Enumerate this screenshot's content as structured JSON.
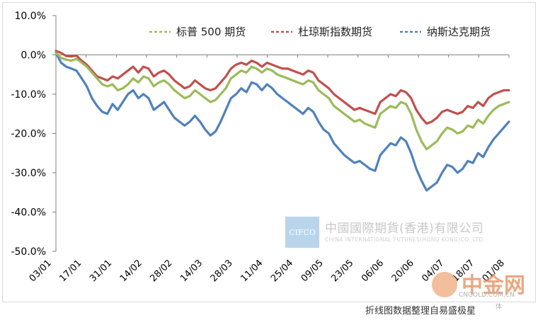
{
  "chart_data": {
    "type": "line",
    "title": "",
    "xlabel": "",
    "ylabel": "",
    "ylim": [
      -0.5,
      0.1
    ],
    "y_ticks": [
      "10.0%",
      "0.0%",
      "-10.0%",
      "-20.0%",
      "-30.0%",
      "-40.0%",
      "-50.0%"
    ],
    "x_ticks": [
      "03/01",
      "17/01",
      "31/01",
      "14/02",
      "28/02",
      "14/03",
      "28/03",
      "11/04",
      "25/04",
      "09/05",
      "23/05",
      "06/06",
      "20/06",
      "04/07",
      "18/07",
      "01/08"
    ],
    "grid": false,
    "legend_position": "top-right",
    "series": [
      {
        "name": "标普 500 期货",
        "color": "#9BBB59",
        "values": [
          0.005,
          -0.008,
          -0.012,
          -0.015,
          -0.01,
          -0.02,
          -0.03,
          -0.045,
          -0.06,
          -0.075,
          -0.08,
          -0.075,
          -0.09,
          -0.085,
          -0.075,
          -0.06,
          -0.07,
          -0.055,
          -0.06,
          -0.08,
          -0.07,
          -0.065,
          -0.075,
          -0.09,
          -0.1,
          -0.11,
          -0.105,
          -0.09,
          -0.1,
          -0.11,
          -0.12,
          -0.115,
          -0.1,
          -0.085,
          -0.06,
          -0.05,
          -0.04,
          -0.045,
          -0.03,
          -0.035,
          -0.045,
          -0.035,
          -0.04,
          -0.05,
          -0.055,
          -0.06,
          -0.065,
          -0.07,
          -0.075,
          -0.065,
          -0.07,
          -0.09,
          -0.1,
          -0.11,
          -0.13,
          -0.14,
          -0.15,
          -0.16,
          -0.17,
          -0.165,
          -0.175,
          -0.18,
          -0.185,
          -0.15,
          -0.14,
          -0.13,
          -0.135,
          -0.12,
          -0.125,
          -0.15,
          -0.19,
          -0.22,
          -0.24,
          -0.23,
          -0.22,
          -0.2,
          -0.185,
          -0.19,
          -0.2,
          -0.195,
          -0.18,
          -0.185,
          -0.165,
          -0.175,
          -0.155,
          -0.14,
          -0.13,
          -0.125,
          -0.12
        ]
      },
      {
        "name": "杜琼斯指数期货",
        "color": "#C0504D",
        "values": [
          0.01,
          0.005,
          -0.003,
          -0.004,
          -0.002,
          -0.015,
          -0.025,
          -0.04,
          -0.055,
          -0.06,
          -0.065,
          -0.055,
          -0.06,
          -0.05,
          -0.04,
          -0.03,
          -0.045,
          -0.03,
          -0.035,
          -0.055,
          -0.045,
          -0.04,
          -0.05,
          -0.065,
          -0.075,
          -0.085,
          -0.08,
          -0.065,
          -0.075,
          -0.085,
          -0.09,
          -0.085,
          -0.07,
          -0.055,
          -0.035,
          -0.025,
          -0.02,
          -0.025,
          -0.015,
          -0.02,
          -0.03,
          -0.02,
          -0.025,
          -0.03,
          -0.035,
          -0.035,
          -0.04,
          -0.045,
          -0.05,
          -0.04,
          -0.045,
          -0.065,
          -0.075,
          -0.085,
          -0.1,
          -0.11,
          -0.12,
          -0.13,
          -0.14,
          -0.135,
          -0.14,
          -0.145,
          -0.15,
          -0.12,
          -0.11,
          -0.1,
          -0.105,
          -0.09,
          -0.095,
          -0.11,
          -0.14,
          -0.16,
          -0.175,
          -0.17,
          -0.16,
          -0.145,
          -0.14,
          -0.145,
          -0.15,
          -0.145,
          -0.13,
          -0.135,
          -0.12,
          -0.13,
          -0.11,
          -0.1,
          -0.095,
          -0.09,
          -0.09
        ]
      },
      {
        "name": "纳斯达克期货",
        "color": "#4F81BD",
        "values": [
          0.005,
          -0.02,
          -0.03,
          -0.035,
          -0.04,
          -0.06,
          -0.08,
          -0.11,
          -0.13,
          -0.145,
          -0.15,
          -0.125,
          -0.14,
          -0.12,
          -0.1,
          -0.09,
          -0.11,
          -0.1,
          -0.11,
          -0.14,
          -0.13,
          -0.12,
          -0.14,
          -0.16,
          -0.17,
          -0.18,
          -0.17,
          -0.155,
          -0.17,
          -0.19,
          -0.205,
          -0.195,
          -0.17,
          -0.14,
          -0.11,
          -0.1,
          -0.085,
          -0.095,
          -0.07,
          -0.075,
          -0.09,
          -0.075,
          -0.085,
          -0.1,
          -0.11,
          -0.12,
          -0.13,
          -0.14,
          -0.15,
          -0.135,
          -0.145,
          -0.17,
          -0.19,
          -0.2,
          -0.225,
          -0.24,
          -0.255,
          -0.265,
          -0.275,
          -0.27,
          -0.28,
          -0.29,
          -0.295,
          -0.255,
          -0.24,
          -0.225,
          -0.23,
          -0.21,
          -0.22,
          -0.25,
          -0.29,
          -0.32,
          -0.345,
          -0.335,
          -0.325,
          -0.3,
          -0.28,
          -0.285,
          -0.3,
          -0.29,
          -0.27,
          -0.275,
          -0.25,
          -0.26,
          -0.235,
          -0.215,
          -0.2,
          -0.185,
          -0.17
        ]
      }
    ]
  },
  "watermark": {
    "logo_text": "CIFCO",
    "company_cn": "中國國際期貨(香港)有限公司",
    "company_en": "CHINA INTERNATIONAL FUTURES(HONG KONG)CO.,LTD."
  },
  "footer_note": "折线图数据整理自易盛极星",
  "corner_logo": {
    "title": "中金网",
    "url": "CNGOLD.COM.CN",
    "sub": "体"
  }
}
